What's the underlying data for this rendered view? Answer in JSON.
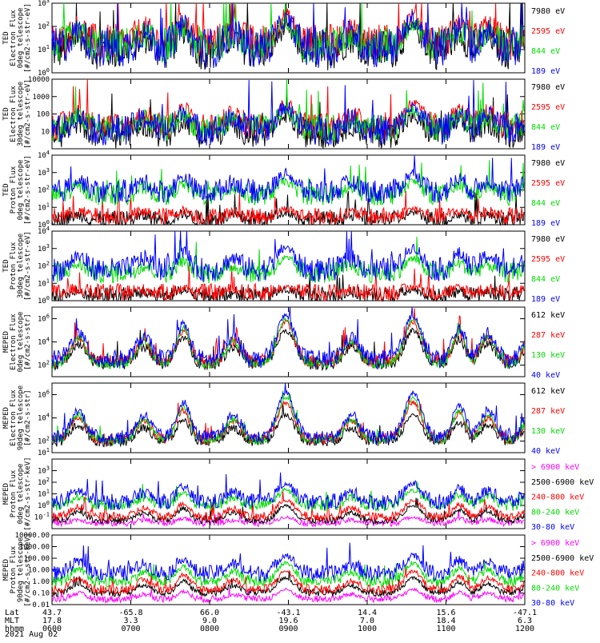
{
  "chart_data": {
    "type": "line",
    "date": "2021 Aug 02",
    "panels": [
      {
        "id": "ted-e-0",
        "ylabel": [
          "TED",
          "Electron Flux",
          "0deg telescope",
          "[#/cm2-s-str-eV]"
        ],
        "log": true,
        "ylim": [
          1,
          1000
        ],
        "ticks": [
          {
            "v": 1,
            "label": "10^0"
          },
          {
            "v": 10,
            "label": "10^1"
          },
          {
            "v": 100,
            "label": "10^2"
          },
          {
            "v": 1000,
            "label": "10^3"
          }
        ],
        "series": [
          {
            "name": "7980 eV",
            "color": "#000000",
            "base": 10,
            "peak": 80,
            "noise": 0.9
          },
          {
            "name": "2595 eV",
            "color": "#ff0000",
            "base": 20,
            "peak": 300,
            "noise": 0.8
          },
          {
            "name": "844 eV",
            "color": "#00dd00",
            "base": 15,
            "peak": 120,
            "noise": 0.8
          },
          {
            "name": "189 eV",
            "color": "#0000ff",
            "base": 12,
            "peak": 200,
            "noise": 0.9
          }
        ]
      },
      {
        "id": "ted-e-30",
        "ylabel": [
          "TED",
          "Electron Flux",
          "30deg telescope",
          "[#/cm2-s-str-eV]"
        ],
        "log": true,
        "ylim": [
          1,
          10000
        ],
        "ticks": [
          {
            "v": 10,
            "label": "10"
          },
          {
            "v": 100,
            "label": "100"
          },
          {
            "v": 1000,
            "label": "1000"
          },
          {
            "v": 10000,
            "label": "10000"
          }
        ],
        "series": [
          {
            "name": "7980 eV",
            "color": "#000000",
            "base": 8,
            "peak": 60,
            "noise": 0.9
          },
          {
            "name": "2595 eV",
            "color": "#ff0000",
            "base": 20,
            "peak": 400,
            "noise": 0.8
          },
          {
            "name": "844 eV",
            "color": "#00dd00",
            "base": 15,
            "peak": 150,
            "noise": 0.8
          },
          {
            "name": "189 eV",
            "color": "#0000ff",
            "base": 12,
            "peak": 250,
            "noise": 0.9
          }
        ]
      },
      {
        "id": "ted-p-0",
        "ylabel": [
          "TED",
          "Proton Flux",
          "0deg telescope",
          "[#/cm2-s-str-eV]"
        ],
        "log": true,
        "ylim": [
          1,
          10000
        ],
        "ticks": [
          {
            "v": 1,
            "label": "10^0"
          },
          {
            "v": 10,
            "label": "10^1"
          },
          {
            "v": 100,
            "label": "10^2"
          },
          {
            "v": 1000,
            "label": "10^3"
          },
          {
            "v": 10000,
            "label": "10^4"
          }
        ],
        "series": [
          {
            "name": "7980 eV",
            "color": "#000000",
            "base": 2,
            "peak": 5,
            "noise": 0.5
          },
          {
            "name": "2595 eV",
            "color": "#ff0000",
            "base": 3,
            "peak": 8,
            "noise": 0.5
          },
          {
            "name": "844 eV",
            "color": "#00dd00",
            "base": 50,
            "peak": 300,
            "noise": 0.6
          },
          {
            "name": "189 eV",
            "color": "#0000ff",
            "base": 80,
            "peak": 900,
            "noise": 0.7
          }
        ]
      },
      {
        "id": "ted-p-30",
        "ylabel": [
          "TED",
          "Proton Flux",
          "30deg telescope",
          "[#/cm2-s-str-eV]"
        ],
        "log": true,
        "ylim": [
          1,
          10000
        ],
        "ticks": [
          {
            "v": 1,
            "label": "10^0"
          },
          {
            "v": 10,
            "label": "10^1"
          },
          {
            "v": 100,
            "label": "10^2"
          },
          {
            "v": 1000,
            "label": "10^3"
          },
          {
            "v": 10000,
            "label": "10^4"
          }
        ],
        "series": [
          {
            "name": "7980 eV",
            "color": "#000000",
            "base": 2,
            "peak": 4,
            "noise": 0.5
          },
          {
            "name": "2595 eV",
            "color": "#ff0000",
            "base": 3,
            "peak": 6,
            "noise": 0.5
          },
          {
            "name": "844 eV",
            "color": "#00dd00",
            "base": 40,
            "peak": 250,
            "noise": 0.6
          },
          {
            "name": "189 eV",
            "color": "#0000ff",
            "base": 60,
            "peak": 1200,
            "noise": 0.7
          }
        ]
      },
      {
        "id": "meped-e-0",
        "ylabel": [
          "MEPED",
          "Electron Flux",
          "0deg telescope",
          "[#/cm2-s-str]"
        ],
        "log": true,
        "ylim": [
          10,
          10000000
        ],
        "ticks": [
          {
            "v": 100,
            "label": "10^2"
          },
          {
            "v": 10000,
            "label": "10^4"
          },
          {
            "v": 1000000,
            "label": "10^6"
          }
        ],
        "series": [
          {
            "name": "612 keV",
            "color": "#000000",
            "base": 150,
            "peak": 100000,
            "noise": 0.6
          },
          {
            "name": "287 keV",
            "color": "#ff0000",
            "base": 200,
            "peak": 500000,
            "noise": 0.6
          },
          {
            "name": "130 keV",
            "color": "#00dd00",
            "base": 120,
            "peak": 900000,
            "noise": 0.4
          },
          {
            "name": "40 keV",
            "color": "#0000ff",
            "base": 300,
            "peak": 2000000,
            "noise": 0.8
          }
        ]
      },
      {
        "id": "meped-e-90",
        "ylabel": [
          "MEPED",
          "Electron Flux",
          "90deg telescope",
          "[#/cm2-s-str]"
        ],
        "log": true,
        "ylim": [
          10,
          10000000
        ],
        "ticks": [
          {
            "v": 10,
            "label": "10^1"
          },
          {
            "v": 100,
            "label": "10^2"
          },
          {
            "v": 10000,
            "label": "10^4"
          },
          {
            "v": 1000000,
            "label": "10^6"
          }
        ],
        "series": [
          {
            "name": "612 keV",
            "color": "#000000",
            "base": 100,
            "peak": 20000,
            "noise": 0.5
          },
          {
            "name": "287 keV",
            "color": "#ff0000",
            "base": 150,
            "peak": 200000,
            "noise": 0.5
          },
          {
            "name": "130 keV",
            "color": "#00dd00",
            "base": 120,
            "peak": 500000,
            "noise": 0.4
          },
          {
            "name": "40 keV",
            "color": "#0000ff",
            "base": 200,
            "peak": 1500000,
            "noise": 0.6
          }
        ]
      },
      {
        "id": "meped-p-0",
        "ylabel": [
          "MEPED",
          "Proton Flux",
          "0deg telescope",
          "[#/cm2-s-str-keV]"
        ],
        "log": true,
        "ylim": [
          0.01,
          10000
        ],
        "ticks": [
          {
            "v": 0.1,
            "label": "10^-1"
          },
          {
            "v": 1,
            "label": "10^0"
          },
          {
            "v": 10,
            "label": "10^1"
          },
          {
            "v": 100,
            "label": "10^2"
          },
          {
            "v": 1000,
            "label": "10^3"
          }
        ],
        "series": [
          {
            "name": "> 6900 keV",
            "color": "#ff00ff",
            "base": 0.03,
            "peak": 0.1,
            "noise": 0.3
          },
          {
            "name": "2500-6900 keV",
            "color": "#000000",
            "base": 0.05,
            "peak": 1,
            "noise": 0.3
          },
          {
            "name": "240-800 keV",
            "color": "#ff0000",
            "base": 0.1,
            "peak": 3,
            "noise": 0.4
          },
          {
            "name": "80-240 keV",
            "color": "#00dd00",
            "base": 1,
            "peak": 20,
            "noise": 0.5
          },
          {
            "name": "30-80 keV",
            "color": "#0000ff",
            "base": 2,
            "peak": 80,
            "noise": 0.7
          }
        ]
      },
      {
        "id": "meped-p-90",
        "ylabel": [
          "MEPED",
          "Proton Flux",
          "90deg telescope",
          "[#/cm2-s-str-keV]"
        ],
        "log": true,
        "ylim": [
          0.01,
          10000
        ],
        "ticks": [
          {
            "v": 0.01,
            "label": "0.01"
          },
          {
            "v": 0.1,
            "label": "0.10"
          },
          {
            "v": 1,
            "label": "1.00"
          },
          {
            "v": 10,
            "label": "10.00"
          },
          {
            "v": 100,
            "label": "100.00"
          },
          {
            "v": 1000,
            "label": "1000.00"
          },
          {
            "v": 10000,
            "label": "10000.00"
          }
        ],
        "series": [
          {
            "name": "> 6900 keV",
            "color": "#ff00ff",
            "base": 0.03,
            "peak": 0.2,
            "noise": 0.3
          },
          {
            "name": "2500-6900 keV",
            "color": "#000000",
            "base": 0.1,
            "peak": 2,
            "noise": 0.3
          },
          {
            "name": "240-800 keV",
            "color": "#ff0000",
            "base": 0.2,
            "peak": 8,
            "noise": 0.4
          },
          {
            "name": "80-240 keV",
            "color": "#00dd00",
            "base": 1,
            "peak": 40,
            "noise": 0.5
          },
          {
            "name": "30-80 keV",
            "color": "#0000ff",
            "base": 5,
            "peak": 200,
            "noise": 0.7
          }
        ]
      }
    ],
    "passes": [
      {
        "t": 20,
        "w": 8,
        "weight": 0.6
      },
      {
        "t": 70,
        "w": 8,
        "weight": 0.5
      },
      {
        "t": 100,
        "w": 7,
        "weight": 0.8
      },
      {
        "t": 138,
        "w": 8,
        "weight": 0.5
      },
      {
        "t": 178,
        "w": 9,
        "weight": 1.0
      },
      {
        "t": 228,
        "w": 8,
        "weight": 0.5
      },
      {
        "t": 275,
        "w": 9,
        "weight": 1.0
      },
      {
        "t": 310,
        "w": 7,
        "weight": 0.7
      },
      {
        "t": 332,
        "w": 8,
        "weight": 0.6
      },
      {
        "t": 368,
        "w": 9,
        "weight": 1.0
      }
    ],
    "xaxis": {
      "range": [
        0,
        360
      ],
      "rows": [
        {
          "label": "Lat",
          "values": [
            "43.7",
            "-65.8",
            "66.0",
            "-43.1",
            "14.4",
            "15.6",
            "-47.1"
          ]
        },
        {
          "label": "MLT",
          "values": [
            "17.8",
            "3.3",
            "9.0",
            "19.6",
            "7.0",
            "18.4",
            "6.3"
          ]
        },
        {
          "label": "hhmm",
          "values": [
            "0600",
            "0700",
            "0800",
            "0900",
            "1000",
            "1100",
            "1200"
          ]
        }
      ]
    }
  }
}
